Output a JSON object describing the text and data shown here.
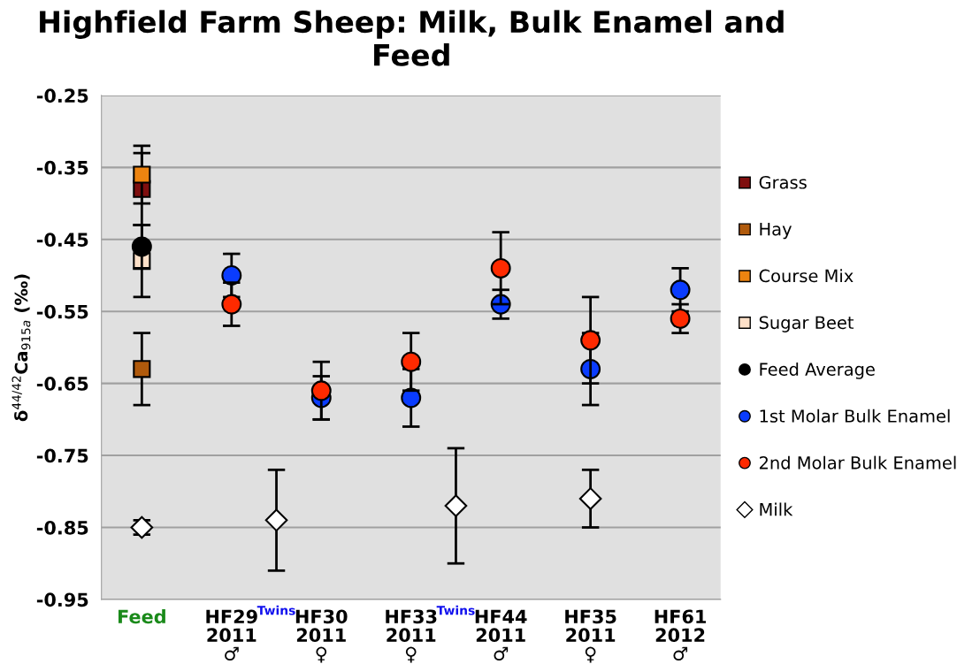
{
  "chart_data": {
    "type": "scatter",
    "title": "Highfield Farm Sheep: Milk, Bulk Enamel and Feed",
    "ylabel": "δ$^{44/42}$Ca$_{915a}$ (‰)",
    "categories": [
      "Feed",
      null,
      "HF29\n2011\n♂",
      null,
      "HF30\n2011\n♀",
      null,
      "HF33\n2011\n♀",
      null,
      "HF44\n2011\n♂",
      null,
      "HF35\n2011\n♀",
      null,
      "HF61\n2012\n♂"
    ],
    "ylim": [
      -0.95,
      -0.25
    ],
    "yticks": [
      -0.95,
      -0.85,
      -0.75,
      -0.65,
      -0.55,
      -0.45,
      -0.35,
      -0.25
    ],
    "annotations": [
      "Twins",
      "Twins"
    ],
    "grid": "y",
    "legend": "right",
    "series": [
      {
        "name": "Grass",
        "color": "#7f0f0f",
        "marker": "square",
        "values": [
          -0.38,
          null,
          null,
          null,
          null,
          null,
          null,
          null,
          null,
          null,
          null,
          null,
          null
        ],
        "errors": [
          0.05,
          null,
          null,
          null,
          null,
          null,
          null,
          null,
          null,
          null,
          null,
          null,
          null
        ]
      },
      {
        "name": "Hay",
        "color": "#b05a0c",
        "marker": "square",
        "values": [
          -0.63,
          null,
          null,
          null,
          null,
          null,
          null,
          null,
          null,
          null,
          null,
          null,
          null
        ],
        "errors": [
          0.05,
          null,
          null,
          null,
          null,
          null,
          null,
          null,
          null,
          null,
          null,
          null,
          null
        ]
      },
      {
        "name": "Course Mix",
        "color": "#ee8410",
        "marker": "square",
        "values": [
          -0.36,
          null,
          null,
          null,
          null,
          null,
          null,
          null,
          null,
          null,
          null,
          null,
          null
        ],
        "errors": [
          0.04,
          null,
          null,
          null,
          null,
          null,
          null,
          null,
          null,
          null,
          null,
          null,
          null
        ]
      },
      {
        "name": "Sugar Beet",
        "color": "#fde0c8",
        "marker": "square",
        "values": [
          -0.48,
          null,
          null,
          null,
          null,
          null,
          null,
          null,
          null,
          null,
          null,
          null,
          null
        ],
        "errors": [
          0.05,
          null,
          null,
          null,
          null,
          null,
          null,
          null,
          null,
          null,
          null,
          null,
          null
        ]
      },
      {
        "name": "Feed Average",
        "color": "#000000",
        "marker": "circle",
        "values": [
          -0.46,
          null,
          null,
          null,
          null,
          null,
          null,
          null,
          null,
          null,
          null,
          null,
          null
        ],
        "errors": [
          0.03,
          null,
          null,
          null,
          null,
          null,
          null,
          null,
          null,
          null,
          null,
          null,
          null
        ]
      },
      {
        "name": "1st Molar Bulk Enamel",
        "color": "#0a3cff",
        "marker": "circle",
        "values": [
          null,
          null,
          -0.5,
          null,
          -0.67,
          null,
          -0.67,
          null,
          -0.54,
          null,
          -0.63,
          null,
          -0.52
        ],
        "errors": [
          null,
          null,
          0.03,
          null,
          0.03,
          null,
          0.04,
          null,
          0.02,
          null,
          0.05,
          null,
          0.03
        ]
      },
      {
        "name": "2nd Molar Bulk Enamel",
        "color": "#ff2a00",
        "marker": "circle",
        "values": [
          null,
          null,
          -0.54,
          null,
          -0.66,
          null,
          -0.62,
          null,
          -0.49,
          null,
          -0.59,
          null,
          -0.56
        ],
        "errors": [
          null,
          null,
          0.03,
          null,
          0.04,
          null,
          0.04,
          null,
          0.05,
          null,
          0.06,
          null,
          0.02
        ]
      },
      {
        "name": "Milk",
        "color": "#ffffff",
        "marker": "diamond",
        "values": [
          -0.85,
          null,
          null,
          -0.84,
          null,
          null,
          null,
          -0.82,
          null,
          null,
          -0.81,
          null,
          null
        ],
        "errors": [
          0.01,
          null,
          null,
          0.07,
          null,
          null,
          null,
          0.08,
          null,
          null,
          0.04,
          null,
          null
        ]
      }
    ]
  }
}
